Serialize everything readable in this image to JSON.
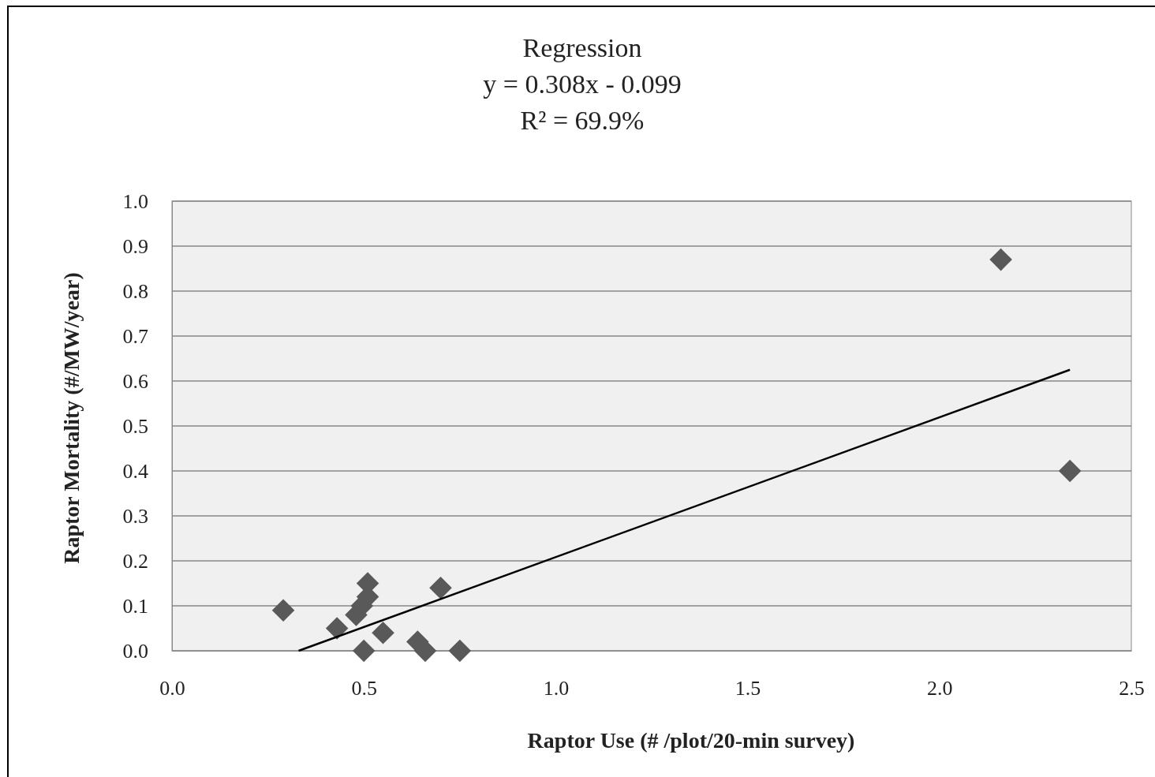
{
  "chart_data": {
    "type": "scatter",
    "title": "Regression\ny = 0.308x - 0.099\nR² = 69.9%",
    "xlabel": "Raptor Use (# /plot/20-min survey)",
    "ylabel": "Raptor Mortality (#/MW/year)",
    "xlim": [
      0,
      2.5
    ],
    "xticks": [
      {
        "value": 0,
        "label": "0.0"
      },
      {
        "value": 0.5,
        "label": "0.5"
      },
      {
        "value": 1,
        "label": "1.0"
      },
      {
        "value": 1.5,
        "label": "1.5"
      },
      {
        "value": 2,
        "label": "2.0"
      },
      {
        "value": 2.5,
        "label": "2.5"
      }
    ],
    "ylim": [
      0,
      1
    ],
    "yticks": [
      {
        "value": 0,
        "label": "0.0"
      },
      {
        "value": 0.1,
        "label": "0.1"
      },
      {
        "value": 0.2,
        "label": "0.2"
      },
      {
        "value": 0.3,
        "label": "0.3"
      },
      {
        "value": 0.4,
        "label": "0.4"
      },
      {
        "value": 0.5,
        "label": "0.5"
      },
      {
        "value": 0.6,
        "label": "0.6"
      },
      {
        "value": 0.7,
        "label": "0.7"
      },
      {
        "value": 0.8,
        "label": "0.8"
      },
      {
        "value": 0.9,
        "label": "0.9"
      },
      {
        "value": 1,
        "label": "1.0"
      }
    ],
    "grid": "y",
    "marker": "diamond",
    "series": [
      {
        "color": "#595959",
        "x": [
          0.29,
          0.51,
          0.48,
          0.495,
          0.51,
          0.43,
          0.7,
          0.55,
          0.5,
          0.64,
          0.66,
          0.75,
          2.16,
          2.34
        ],
        "values": [
          0.09,
          0.15,
          0.08,
          0.1,
          0.12,
          0.05,
          0.14,
          0.04,
          0.0,
          0.02,
          0.0,
          0.0,
          0.87,
          0.4
        ]
      },
      {
        "type": "line",
        "color": "#000000",
        "marker": "none",
        "x": [
          0.33,
          2.34
        ],
        "values": [
          0.0,
          0.625
        ]
      }
    ]
  }
}
